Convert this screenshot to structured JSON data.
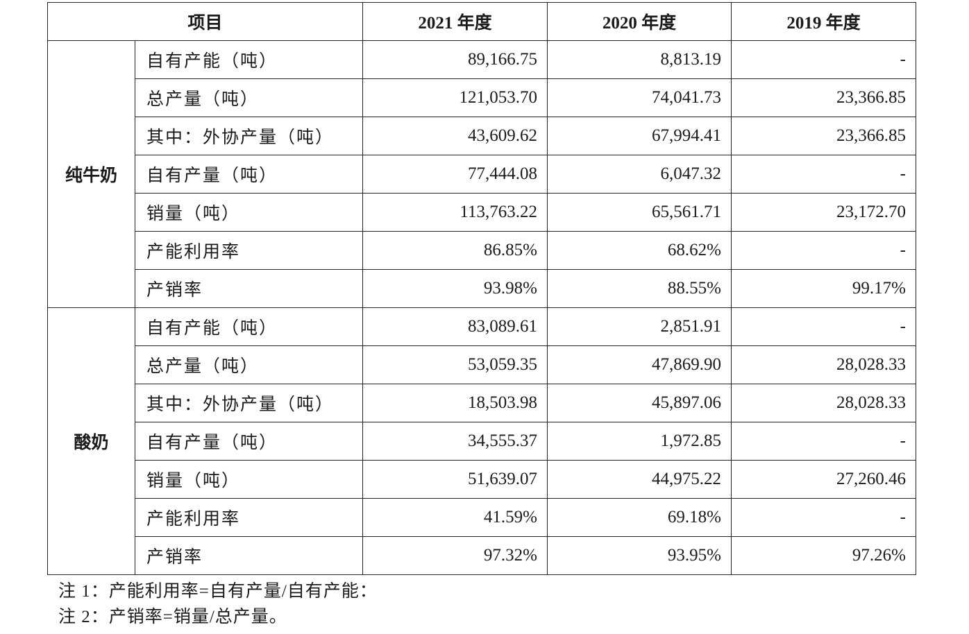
{
  "header": {
    "item": "项目",
    "cols": [
      "2021 年度",
      "2020 年度",
      "2019 年度"
    ]
  },
  "groups": [
    {
      "category": "纯牛奶",
      "rows": [
        {
          "label": "自有产能（吨）",
          "values": [
            "89,166.75",
            "8,813.19",
            "-"
          ]
        },
        {
          "label": "总产量（吨）",
          "values": [
            "121,053.70",
            "74,041.73",
            "23,366.85"
          ]
        },
        {
          "label": "其中：外协产量（吨）",
          "values": [
            "43,609.62",
            "67,994.41",
            "23,366.85"
          ]
        },
        {
          "label": "自有产量（吨）",
          "values": [
            "77,444.08",
            "6,047.32",
            "-"
          ]
        },
        {
          "label": "销量（吨）",
          "values": [
            "113,763.22",
            "65,561.71",
            "23,172.70"
          ]
        },
        {
          "label": "产能利用率",
          "values": [
            "86.85%",
            "68.62%",
            "-"
          ]
        },
        {
          "label": "产销率",
          "values": [
            "93.98%",
            "88.55%",
            "99.17%"
          ]
        }
      ]
    },
    {
      "category": "酸奶",
      "rows": [
        {
          "label": "自有产能（吨）",
          "values": [
            "83,089.61",
            "2,851.91",
            "-"
          ]
        },
        {
          "label": "总产量（吨）",
          "values": [
            "53,059.35",
            "47,869.90",
            "28,028.33"
          ]
        },
        {
          "label": "其中：外协产量（吨）",
          "values": [
            "18,503.98",
            "45,897.06",
            "28,028.33"
          ]
        },
        {
          "label": "自有产量（吨）",
          "values": [
            "34,555.37",
            "1,972.85",
            "-"
          ]
        },
        {
          "label": "销量（吨）",
          "values": [
            "51,639.07",
            "44,975.22",
            "27,260.46"
          ]
        },
        {
          "label": "产能利用率",
          "values": [
            "41.59%",
            "69.18%",
            "-"
          ]
        },
        {
          "label": "产销率",
          "values": [
            "97.32%",
            "93.95%",
            "97.26%"
          ]
        }
      ]
    }
  ],
  "notes": [
    "注 1：产能利用率=自有产量/自有产能：",
    "注 2：产销率=销量/总产量。"
  ]
}
